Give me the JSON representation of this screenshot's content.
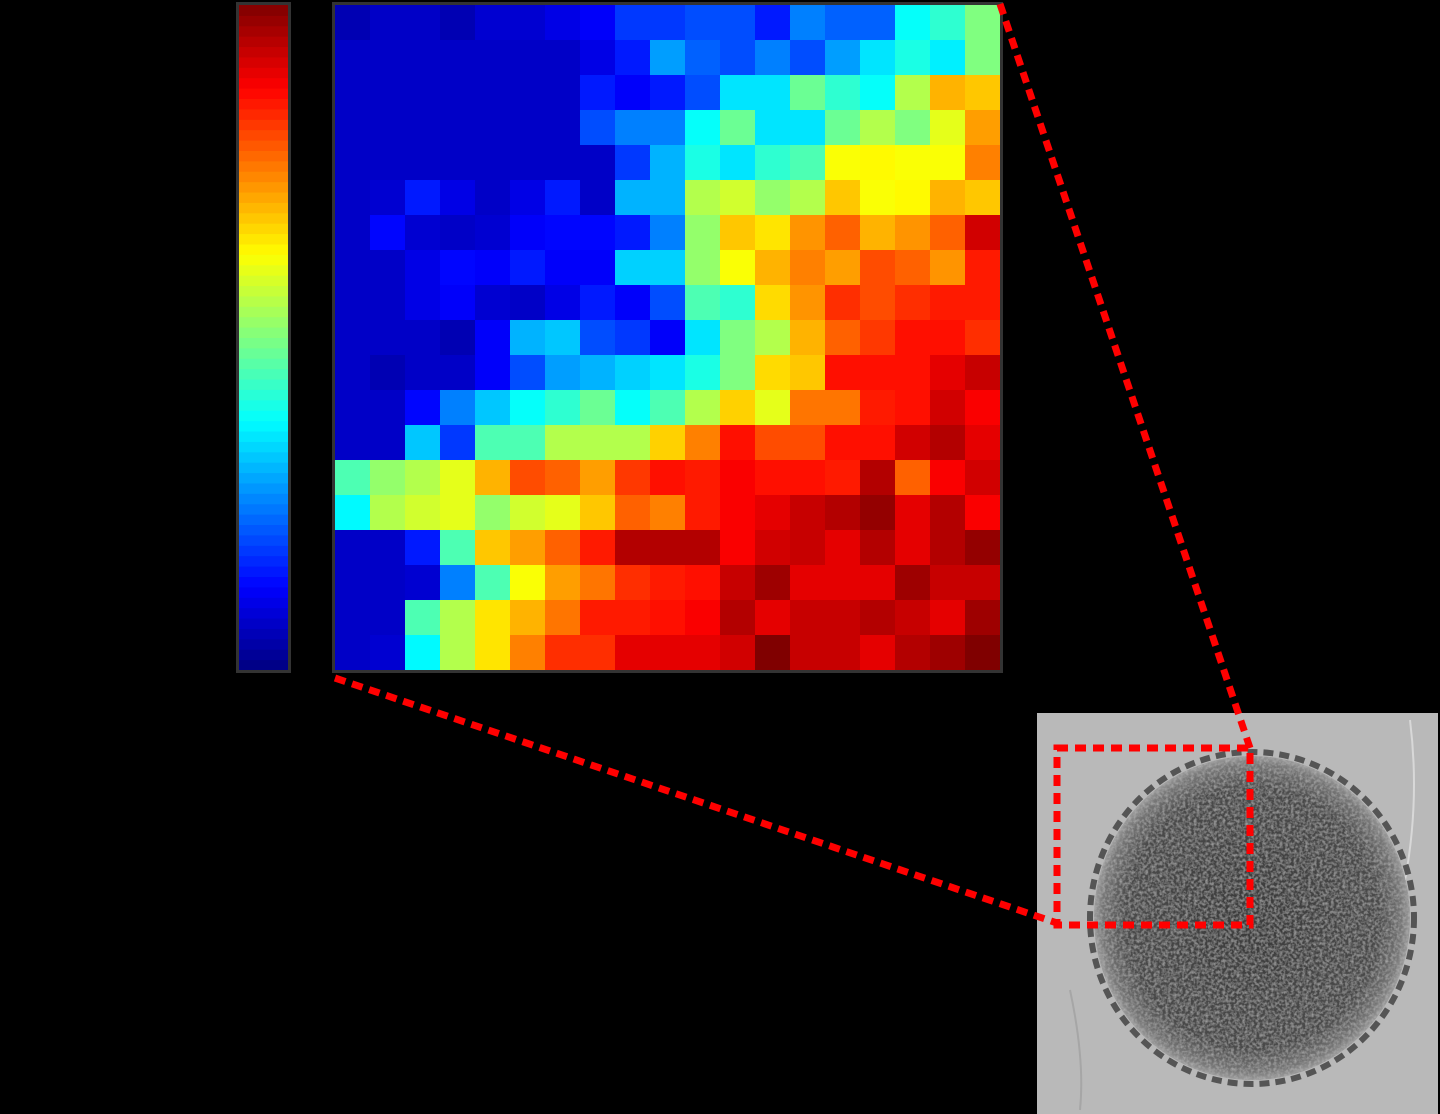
{
  "chart_data": {
    "type": "heatmap",
    "colormap": "jet",
    "zlim": [
      0,
      1
    ],
    "z": [
      [
        0.05,
        0.07,
        0.07,
        0.05,
        0.08,
        0.08,
        0.1,
        0.12,
        0.18,
        0.18,
        0.2,
        0.2,
        0.15,
        0.25,
        0.22,
        0.22,
        0.38,
        0.42,
        0.5
      ],
      [
        0.07,
        0.07,
        0.07,
        0.07,
        0.07,
        0.07,
        0.07,
        0.1,
        0.15,
        0.28,
        0.22,
        0.2,
        0.25,
        0.2,
        0.28,
        0.35,
        0.4,
        0.36,
        0.5
      ],
      [
        0.07,
        0.07,
        0.07,
        0.07,
        0.07,
        0.07,
        0.07,
        0.15,
        0.12,
        0.15,
        0.2,
        0.35,
        0.35,
        0.48,
        0.42,
        0.38,
        0.55,
        0.7,
        0.68
      ],
      [
        0.07,
        0.07,
        0.07,
        0.07,
        0.07,
        0.07,
        0.07,
        0.2,
        0.25,
        0.25,
        0.38,
        0.48,
        0.35,
        0.35,
        0.48,
        0.55,
        0.5,
        0.6,
        0.72
      ],
      [
        0.07,
        0.07,
        0.07,
        0.07,
        0.07,
        0.07,
        0.07,
        0.07,
        0.18,
        0.3,
        0.4,
        0.35,
        0.42,
        0.45,
        0.62,
        0.63,
        0.62,
        0.62,
        0.75
      ],
      [
        0.07,
        0.08,
        0.15,
        0.1,
        0.07,
        0.1,
        0.15,
        0.07,
        0.3,
        0.3,
        0.55,
        0.58,
        0.52,
        0.55,
        0.68,
        0.62,
        0.63,
        0.7,
        0.68
      ],
      [
        0.07,
        0.13,
        0.08,
        0.07,
        0.08,
        0.12,
        0.13,
        0.13,
        0.15,
        0.25,
        0.52,
        0.68,
        0.65,
        0.73,
        0.78,
        0.7,
        0.73,
        0.78,
        0.92
      ],
      [
        0.07,
        0.07,
        0.1,
        0.13,
        0.12,
        0.15,
        0.12,
        0.12,
        0.33,
        0.33,
        0.52,
        0.62,
        0.7,
        0.75,
        0.72,
        0.8,
        0.78,
        0.73,
        0.85
      ],
      [
        0.07,
        0.07,
        0.1,
        0.12,
        0.08,
        0.07,
        0.1,
        0.15,
        0.12,
        0.2,
        0.45,
        0.42,
        0.66,
        0.73,
        0.83,
        0.8,
        0.83,
        0.85,
        0.85
      ],
      [
        0.07,
        0.07,
        0.07,
        0.05,
        0.12,
        0.3,
        0.32,
        0.2,
        0.18,
        0.12,
        0.35,
        0.5,
        0.55,
        0.7,
        0.78,
        0.82,
        0.86,
        0.86,
        0.83
      ],
      [
        0.07,
        0.05,
        0.07,
        0.07,
        0.12,
        0.2,
        0.28,
        0.3,
        0.33,
        0.35,
        0.4,
        0.5,
        0.66,
        0.68,
        0.86,
        0.86,
        0.86,
        0.9,
        0.93
      ],
      [
        0.07,
        0.07,
        0.13,
        0.25,
        0.32,
        0.38,
        0.42,
        0.48,
        0.38,
        0.45,
        0.55,
        0.67,
        0.6,
        0.76,
        0.76,
        0.85,
        0.86,
        0.92,
        0.88
      ],
      [
        0.07,
        0.07,
        0.32,
        0.18,
        0.45,
        0.45,
        0.55,
        0.55,
        0.55,
        0.67,
        0.75,
        0.86,
        0.8,
        0.8,
        0.86,
        0.86,
        0.92,
        0.95,
        0.9
      ],
      [
        0.45,
        0.52,
        0.55,
        0.6,
        0.7,
        0.8,
        0.78,
        0.72,
        0.82,
        0.86,
        0.85,
        0.88,
        0.86,
        0.86,
        0.85,
        0.95,
        0.78,
        0.88,
        0.92
      ],
      [
        0.37,
        0.55,
        0.58,
        0.6,
        0.52,
        0.58,
        0.6,
        0.68,
        0.78,
        0.75,
        0.85,
        0.88,
        0.9,
        0.93,
        0.95,
        0.98,
        0.9,
        0.95,
        0.88
      ],
      [
        0.07,
        0.07,
        0.15,
        0.45,
        0.68,
        0.72,
        0.78,
        0.85,
        0.95,
        0.95,
        0.95,
        0.88,
        0.92,
        0.93,
        0.9,
        0.95,
        0.9,
        0.95,
        0.98
      ],
      [
        0.07,
        0.07,
        0.08,
        0.25,
        0.45,
        0.62,
        0.72,
        0.76,
        0.83,
        0.85,
        0.86,
        0.93,
        0.97,
        0.9,
        0.9,
        0.9,
        0.97,
        0.93,
        0.93
      ],
      [
        0.07,
        0.07,
        0.45,
        0.55,
        0.65,
        0.7,
        0.76,
        0.85,
        0.85,
        0.86,
        0.88,
        0.95,
        0.9,
        0.93,
        0.93,
        0.95,
        0.93,
        0.9,
        0.97
      ],
      [
        0.07,
        0.08,
        0.37,
        0.55,
        0.65,
        0.75,
        0.83,
        0.83,
        0.9,
        0.9,
        0.9,
        0.92,
        1.0,
        0.93,
        0.93,
        0.9,
        0.95,
        0.97,
        1.0
      ]
    ]
  }
}
